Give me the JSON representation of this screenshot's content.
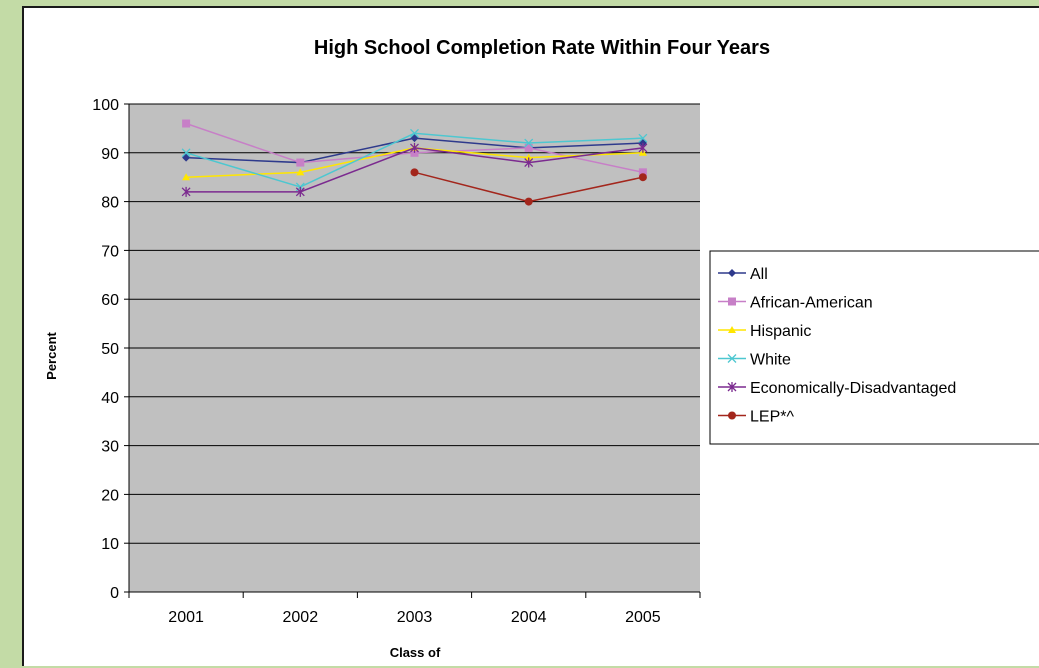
{
  "chart_data": {
    "type": "line",
    "title": "High School Completion Rate Within Four Years",
    "xlabel": "Class of",
    "ylabel": "Percent",
    "categories": [
      "2001",
      "2002",
      "2003",
      "2004",
      "2005"
    ],
    "ylim": [
      0,
      100
    ],
    "yticks": [
      0,
      10,
      20,
      30,
      40,
      50,
      60,
      70,
      80,
      90,
      100
    ],
    "grid": "horizontal",
    "legend_position": "right",
    "plot_background": "#c0c0c0",
    "series": [
      {
        "name": "All",
        "color": "#2e3a8c",
        "marker": "diamond",
        "values": [
          89,
          88,
          93,
          91,
          92
        ]
      },
      {
        "name": "African-American",
        "color": "#c77fc7",
        "marker": "square",
        "values": [
          96,
          88,
          90,
          91,
          86
        ]
      },
      {
        "name": "Hispanic",
        "color": "#ffe600",
        "marker": "triangle",
        "values": [
          85,
          86,
          91,
          89,
          90
        ]
      },
      {
        "name": "White",
        "color": "#4dc7d0",
        "marker": "x",
        "values": [
          90,
          83,
          94,
          92,
          93
        ]
      },
      {
        "name": "Economically-Disadvantaged",
        "color": "#7b2a8f",
        "marker": "asterisk",
        "values": [
          82,
          82,
          91,
          88,
          91
        ]
      },
      {
        "name": "LEP*^",
        "color": "#a3261c",
        "marker": "circle",
        "values": [
          null,
          null,
          86,
          80,
          85
        ]
      }
    ]
  }
}
